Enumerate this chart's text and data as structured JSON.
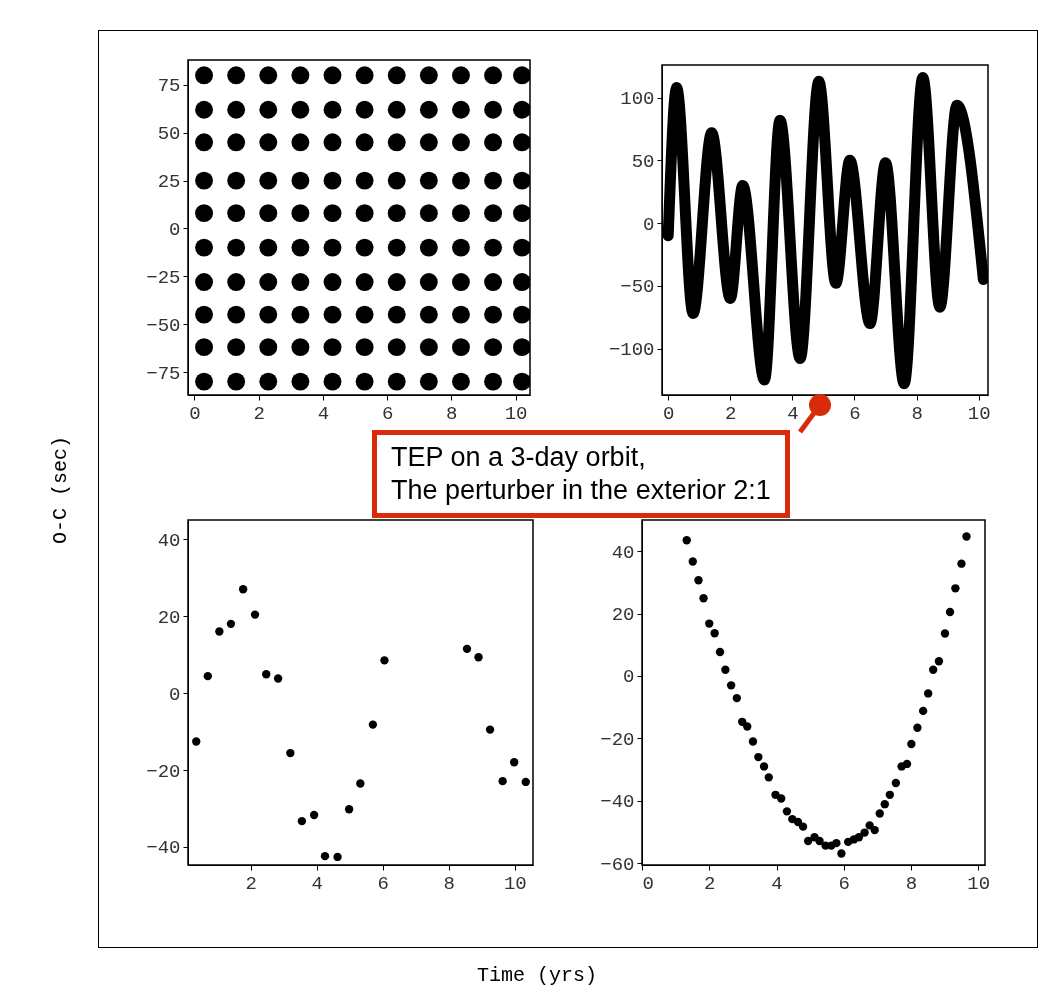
{
  "chart_data": [
    {
      "type": "scatter",
      "ylabel": "O-C (sec)",
      "xlabel": "Time (yrs)",
      "color": "#000000",
      "marker": "circle",
      "xlim": [
        -0.2,
        10.45
      ],
      "ylim": [
        -87,
        88
      ],
      "xticks": [
        0,
        2,
        4,
        6,
        8,
        10
      ],
      "yticks": [
        -75,
        -50,
        -25,
        0,
        25,
        50,
        75
      ],
      "x": [
        0.3,
        1.3,
        2.3,
        3.3,
        4.3,
        5.3,
        6.3,
        7.3,
        8.3,
        9.3,
        10.2,
        0.3,
        1.3,
        2.3,
        3.3,
        4.3,
        5.3,
        6.3,
        7.3,
        8.3,
        9.3,
        10.2,
        0.3,
        1.3,
        2.3,
        3.3,
        4.3,
        5.3,
        6.3,
        7.3,
        8.3,
        9.3,
        10.2,
        0.3,
        1.3,
        2.3,
        3.3,
        4.3,
        5.3,
        6.3,
        7.3,
        8.3,
        9.3,
        10.2,
        0.3,
        1.3,
        2.3,
        3.3,
        4.3,
        5.3,
        6.3,
        7.3,
        8.3,
        9.3,
        10.2,
        0.3,
        1.3,
        2.3,
        3.3,
        4.3,
        5.3,
        6.3,
        7.3,
        8.3,
        9.3,
        10.2,
        0.3,
        1.3,
        2.3,
        3.3,
        4.3,
        5.3,
        6.3,
        7.3,
        8.3,
        9.3,
        10.2,
        0.3,
        1.3,
        2.3,
        3.3,
        4.3,
        5.3,
        6.3,
        7.3,
        8.3,
        9.3,
        10.2,
        0.3,
        1.3,
        2.3,
        3.3,
        4.3,
        5.3,
        6.3,
        7.3,
        8.3,
        9.3,
        10.2,
        0.3,
        1.3,
        2.3,
        3.3,
        4.3,
        5.3,
        6.3,
        7.3,
        8.3,
        9.3,
        10.2
      ],
      "values": [
        80,
        80,
        80,
        80,
        80,
        80,
        80,
        80,
        80,
        80,
        80,
        62,
        62,
        62,
        62,
        62,
        62,
        62,
        62,
        62,
        62,
        62,
        45,
        45,
        45,
        45,
        45,
        45,
        45,
        45,
        45,
        45,
        45,
        25,
        25,
        25,
        25,
        25,
        25,
        25,
        25,
        25,
        25,
        25,
        8,
        8,
        8,
        8,
        8,
        8,
        8,
        8,
        8,
        8,
        8,
        -10,
        -10,
        -10,
        -10,
        -10,
        -10,
        -10,
        -10,
        -10,
        -10,
        -10,
        -28,
        -28,
        -28,
        -28,
        -28,
        -28,
        -28,
        -28,
        -28,
        -28,
        -28,
        -45,
        -45,
        -45,
        -45,
        -45,
        -45,
        -45,
        -45,
        -45,
        -45,
        -45,
        -62,
        -62,
        -62,
        -62,
        -62,
        -62,
        -62,
        -62,
        -62,
        -62,
        -62,
        -80,
        -80,
        -80,
        -80,
        -80,
        -80,
        -80,
        -80,
        -80,
        -80,
        -80
      ]
    },
    {
      "type": "line",
      "color": "#000000",
      "marker": "none",
      "xlim": [
        -0.2,
        10.3
      ],
      "ylim": [
        -137,
        126
      ],
      "xticks": [
        0,
        2,
        4,
        6,
        8,
        10
      ],
      "yticks": [
        -100,
        -50,
        0,
        50,
        100
      ],
      "annotations": [
        "TEP on a 3-day orbit,\nThe perturber in the exterior 2:1"
      ],
      "x": [
        0,
        0.27,
        0.8,
        1.4,
        2.0,
        2.4,
        3.1,
        3.6,
        4.25,
        4.85,
        5.4,
        5.85,
        6.5,
        7.0,
        7.6,
        8.2,
        8.75,
        9.3,
        10.15
      ],
      "values": [
        -10,
        108,
        -72,
        72,
        -60,
        30,
        -125,
        82,
        -108,
        113,
        -48,
        50,
        -80,
        48,
        -128,
        116,
        -67,
        94,
        -45
      ]
    },
    {
      "type": "scatter",
      "color": "#000000",
      "marker": "circle",
      "xlim": [
        0.1,
        10.55
      ],
      "ylim": [
        -44.7,
        45
      ],
      "xticks": [
        2,
        4,
        6,
        8,
        10
      ],
      "yticks": [
        -40,
        -20,
        0,
        20,
        40
      ],
      "x": [
        0.35,
        0.7,
        1.05,
        1.4,
        1.77,
        2.13,
        2.47,
        2.83,
        3.2,
        3.55,
        3.92,
        4.25,
        4.63,
        4.98,
        5.32,
        5.7,
        6.05,
        8.55,
        8.9,
        9.25,
        9.63,
        9.98,
        10.33
      ],
      "values": [
        -12.6,
        4.4,
        16,
        18,
        27,
        20.4,
        4.9,
        3.8,
        -15.6,
        -33.3,
        -31.7,
        -42.4,
        -42.6,
        -30.2,
        -23.5,
        -8.2,
        8.5,
        11.5,
        9.3,
        -9.5,
        -22.9,
        -18,
        -23.1
      ]
    },
    {
      "type": "scatter",
      "color": "#000000",
      "marker": "circle",
      "xlim": [
        0,
        10.2
      ],
      "ylim": [
        -60.6,
        50
      ],
      "xticks": [
        0,
        2,
        4,
        6,
        8,
        10
      ],
      "yticks": [
        -60,
        -40,
        -20,
        0,
        20,
        40
      ],
      "x": [
        1.33,
        1.51,
        1.68,
        1.83,
        2.0,
        2.16,
        2.32,
        2.48,
        2.65,
        2.82,
        2.98,
        3.13,
        3.3,
        3.46,
        3.63,
        3.77,
        3.97,
        4.14,
        4.31,
        4.47,
        4.64,
        4.79,
        4.94,
        5.13,
        5.28,
        5.46,
        5.63,
        5.78,
        5.93,
        6.13,
        6.3,
        6.45,
        6.62,
        6.77,
        6.92,
        7.07,
        7.22,
        7.37,
        7.55,
        7.72,
        7.88,
        8.01,
        8.19,
        8.36,
        8.51,
        8.66,
        8.83,
        9.01,
        9.16,
        9.32,
        9.5,
        9.65
      ],
      "values": [
        43.5,
        36.7,
        30.7,
        24.9,
        16.8,
        13.7,
        7.7,
        2,
        -3,
        -7.1,
        -14.7,
        -16.2,
        -21,
        -26,
        -29,
        -32.5,
        -38.1,
        -39.3,
        -43.4,
        -45.9,
        -46.8,
        -48.3,
        -52.9,
        -51.7,
        -52.9,
        -54.4,
        -54.4,
        -53.6,
        -56.9,
        -53.2,
        -52.4,
        -51.7,
        -50.2,
        -47.9,
        -49.4,
        -44.1,
        -41.1,
        -38.1,
        -34.3,
        -29,
        -28.2,
        -21.8,
        -16.6,
        -11.2,
        -5.6,
        2,
        4.7,
        13.6,
        20.5,
        28.1,
        36,
        44.7
      ]
    }
  ]
}
